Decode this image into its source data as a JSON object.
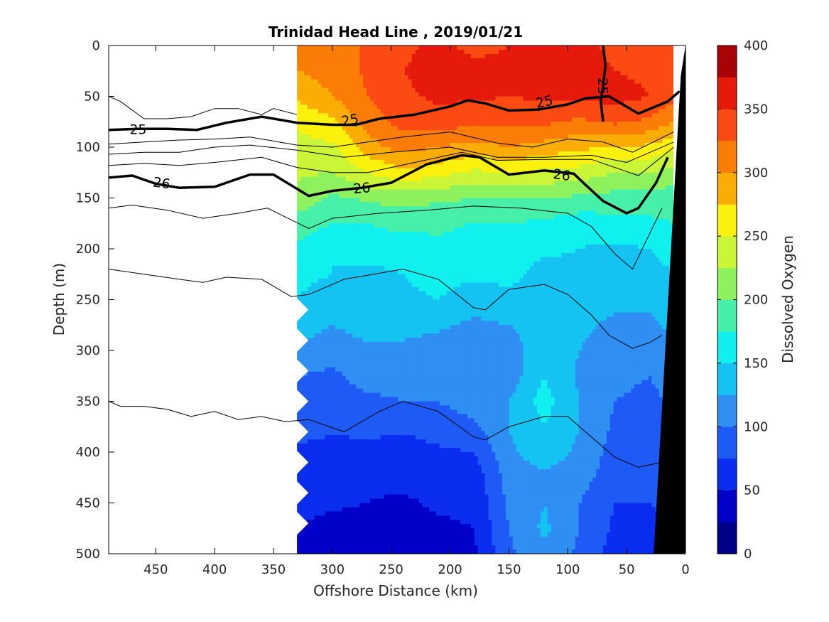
{
  "chart_data": {
    "type": "heatmap",
    "title": "Trinidad Head Line , 2019/01/21",
    "xlabel": "Offshore Distance (km)",
    "ylabel": "Depth (m)",
    "colorbar_label": "Dissolved Oxygen",
    "x_reversed": true,
    "xlim": [
      0,
      490
    ],
    "ylim": [
      0,
      500
    ],
    "y_reversed": true,
    "x_ticks": [
      450,
      400,
      350,
      300,
      250,
      200,
      150,
      100,
      50,
      0
    ],
    "y_ticks": [
      0,
      50,
      100,
      150,
      200,
      250,
      300,
      350,
      400,
      450,
      500
    ],
    "colorbar": {
      "levels": [
        0,
        25,
        50,
        75,
        100,
        125,
        150,
        175,
        200,
        225,
        250,
        275,
        300,
        325,
        350,
        375,
        400
      ],
      "tick_labels": [
        0,
        50,
        100,
        150,
        200,
        250,
        300,
        350,
        400
      ],
      "colors": [
        "#000088",
        "#0000c9",
        "#0a2df0",
        "#1e5af5",
        "#2f8ff2",
        "#15c3f2",
        "#10f0ee",
        "#46f0a8",
        "#8ef25f",
        "#cbf537",
        "#fbf10d",
        "#fbad05",
        "#fb7c06",
        "#fb4a12",
        "#e61a0b",
        "#a90305"
      ]
    },
    "data_extent_x_min": 0,
    "data_extent_x_max": 330,
    "sigma_contours_labeled": [
      {
        "label": "25",
        "x": [
          490,
          465,
          440,
          415,
          390,
          360,
          330,
          300,
          280,
          260,
          230,
          200,
          185,
          170,
          150,
          125,
          100,
          85,
          65,
          40,
          15,
          5
        ],
        "depth": [
          83,
          82,
          82,
          83,
          76,
          70,
          76,
          78,
          78,
          72,
          68,
          60,
          54,
          57,
          64,
          63,
          58,
          52,
          50,
          67,
          55,
          45
        ]
      },
      {
        "label": "26",
        "x": [
          490,
          470,
          450,
          430,
          400,
          370,
          350,
          320,
          300,
          275,
          250,
          220,
          190,
          175,
          150,
          120,
          95,
          85,
          70,
          50,
          40,
          25,
          15
        ],
        "depth": [
          130,
          128,
          136,
          140,
          139,
          127,
          127,
          148,
          143,
          140,
          135,
          117,
          108,
          110,
          127,
          123,
          126,
          137,
          153,
          165,
          160,
          135,
          110
        ]
      },
      {
        "label": "25",
        "x": [
          70,
          68,
          70,
          72,
          70
        ],
        "depth": [
          0,
          20,
          40,
          55,
          75
        ]
      }
    ],
    "sigma_contours_unlabeled": [
      {
        "x": [
          490,
          480,
          460,
          440,
          420,
          400,
          380,
          360,
          350,
          330
        ],
        "depth": [
          50,
          55,
          72,
          72,
          70,
          62,
          62,
          68,
          62,
          68
        ]
      },
      {
        "x": [
          490,
          460,
          430,
          400,
          370,
          330,
          300,
          270,
          240,
          200,
          160,
          130,
          100,
          70,
          45,
          10
        ],
        "depth": [
          97,
          95,
          93,
          92,
          90,
          98,
          100,
          95,
          90,
          85,
          96,
          100,
          92,
          95,
          105,
          85
        ]
      },
      {
        "x": [
          490,
          460,
          430,
          400,
          370,
          330,
          290,
          250,
          200,
          160,
          120,
          80,
          50,
          10
        ],
        "depth": [
          107,
          105,
          105,
          100,
          98,
          103,
          110,
          105,
          100,
          110,
          110,
          108,
          115,
          95
        ]
      },
      {
        "x": [
          490,
          460,
          430,
          400,
          360,
          330,
          300,
          270,
          230,
          190,
          160,
          120,
          80,
          40,
          10
        ],
        "depth": [
          118,
          116,
          118,
          115,
          110,
          120,
          125,
          125,
          115,
          105,
          113,
          112,
          112,
          128,
          100
        ]
      },
      {
        "x": [
          490,
          470,
          440,
          410,
          380,
          355,
          320,
          300,
          260,
          220,
          180,
          140,
          100,
          80,
          60,
          45,
          20
        ],
        "depth": [
          160,
          157,
          162,
          170,
          165,
          160,
          180,
          170,
          165,
          162,
          158,
          160,
          165,
          178,
          205,
          220,
          160
        ]
      },
      {
        "x": [
          490,
          460,
          430,
          410,
          390,
          360,
          335,
          320,
          290,
          270,
          240,
          210,
          180,
          170,
          150,
          120,
          100,
          80,
          65,
          45,
          30,
          20
        ],
        "depth": [
          220,
          225,
          230,
          233,
          228,
          230,
          247,
          245,
          230,
          226,
          220,
          230,
          258,
          260,
          240,
          235,
          245,
          265,
          285,
          298,
          292,
          285
        ]
      },
      {
        "x": [
          490,
          480,
          460,
          440,
          420,
          400,
          380,
          360,
          340,
          320,
          290,
          260,
          240,
          210,
          180,
          170,
          150,
          120,
          100,
          80,
          60,
          40,
          20
        ],
        "depth": [
          350,
          355,
          355,
          358,
          365,
          360,
          368,
          365,
          370,
          368,
          380,
          360,
          350,
          360,
          385,
          388,
          375,
          365,
          365,
          385,
          405,
          415,
          410
        ]
      }
    ],
    "field": {
      "x": [
        330,
        300,
        270,
        240,
        210,
        180,
        150,
        120,
        90,
        60,
        30,
        10
      ],
      "depth": [
        0,
        25,
        50,
        75,
        100,
        125,
        150,
        175,
        200,
        225,
        250,
        275,
        300,
        325,
        350,
        375,
        400,
        425,
        450,
        475,
        500
      ],
      "oxygen": [
        [
          300,
          310,
          330,
          345,
          355,
          345,
          350,
          360,
          355,
          345,
          340,
          335
        ],
        [
          300,
          310,
          330,
          350,
          360,
          355,
          355,
          365,
          360,
          350,
          345,
          340
        ],
        [
          280,
          300,
          325,
          345,
          355,
          355,
          350,
          355,
          355,
          360,
          350,
          335
        ],
        [
          255,
          270,
          310,
          335,
          340,
          330,
          330,
          330,
          320,
          330,
          320,
          300
        ],
        [
          240,
          245,
          290,
          310,
          300,
          290,
          300,
          290,
          280,
          275,
          270,
          255
        ],
        [
          230,
          225,
          250,
          270,
          260,
          245,
          250,
          245,
          240,
          225,
          225,
          215
        ],
        [
          215,
          195,
          205,
          210,
          205,
          200,
          200,
          200,
          195,
          190,
          190,
          185
        ],
        [
          190,
          175,
          175,
          185,
          180,
          175,
          175,
          170,
          160,
          165,
          170,
          175
        ],
        [
          170,
          150,
          160,
          155,
          170,
          160,
          160,
          155,
          150,
          145,
          150,
          160
        ],
        [
          160,
          150,
          145,
          150,
          160,
          155,
          160,
          140,
          145,
          135,
          140,
          150
        ],
        [
          150,
          130,
          140,
          145,
          150,
          135,
          140,
          135,
          140,
          130,
          130,
          140
        ],
        [
          140,
          125,
          135,
          140,
          130,
          120,
          125,
          140,
          130,
          120,
          120,
          130
        ],
        [
          120,
          110,
          120,
          115,
          110,
          115,
          110,
          145,
          125,
          110,
          110,
          120
        ],
        [
          100,
          95,
          110,
          110,
          105,
          115,
          110,
          150,
          120,
          105,
          100,
          110
        ],
        [
          95,
          90,
          95,
          100,
          100,
          110,
          125,
          160,
          125,
          100,
          95,
          105
        ],
        [
          85,
          80,
          85,
          80,
          90,
          95,
          125,
          150,
          125,
          95,
          90,
          95
        ],
        [
          70,
          65,
          65,
          60,
          70,
          75,
          120,
          140,
          120,
          90,
          90,
          90
        ],
        [
          65,
          60,
          55,
          60,
          55,
          60,
          110,
          120,
          110,
          85,
          80,
          85
        ],
        [
          60,
          55,
          50,
          45,
          55,
          55,
          105,
          125,
          100,
          75,
          75,
          80
        ],
        [
          50,
          40,
          35,
          35,
          45,
          50,
          100,
          130,
          100,
          70,
          70,
          75
        ],
        [
          45,
          35,
          30,
          30,
          40,
          45,
          95,
          120,
          95,
          65,
          65,
          70
        ]
      ]
    },
    "bottom_profile": {
      "x": [
        0,
        0,
        27,
        30
      ],
      "depth": [
        500,
        0,
        500,
        500
      ]
    }
  }
}
